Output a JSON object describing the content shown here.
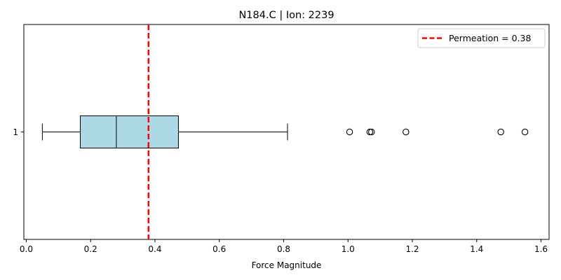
{
  "chart_data": {
    "type": "boxplot",
    "orientation": "horizontal",
    "title": "N184.C | Ion: 2239",
    "xlabel": "Force Magnitude",
    "ylabel": "",
    "xlim": [
      -0.0075,
      1.625
    ],
    "x_ticks": [
      0.0,
      0.2,
      0.4,
      0.6,
      0.8,
      1.0,
      1.2,
      1.4,
      1.6
    ],
    "x_tick_labels": [
      "0.0",
      "0.2",
      "0.4",
      "0.6",
      "0.8",
      "1.0",
      "1.2",
      "1.4",
      "1.6"
    ],
    "y_tick_labels": [
      "1"
    ],
    "grid": false,
    "legend_position": "top-right",
    "boxes": [
      {
        "label": "1",
        "whisker_low": 0.05,
        "q1": 0.168,
        "median": 0.28,
        "q3": 0.473,
        "whisker_high": 0.812,
        "outliers": [
          1.005,
          1.068,
          1.073,
          1.18,
          1.475,
          1.55
        ],
        "color": "#add8e6"
      }
    ],
    "reference_line": {
      "value": 0.38,
      "label": "Permeation = 0.38",
      "color": "#ff0000",
      "style": "dashed"
    }
  }
}
